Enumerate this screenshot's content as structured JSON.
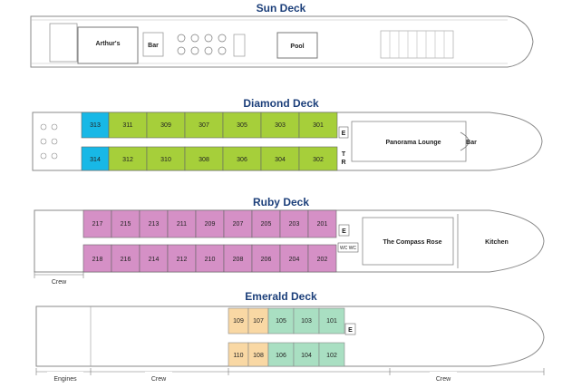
{
  "decks": {
    "sun": {
      "title": "Sun Deck",
      "labels": {
        "arthurs": "Arthur's",
        "bar": "Bar",
        "pool": "Pool"
      }
    },
    "diamond": {
      "title": "Diamond Deck",
      "top_cabins": [
        "313",
        "311",
        "309",
        "307",
        "305",
        "303",
        "301"
      ],
      "bottom_cabins": [
        "314",
        "312",
        "310",
        "308",
        "306",
        "304",
        "302"
      ],
      "labels": {
        "e": "E",
        "t": "T",
        "r": "R",
        "lounge": "Panorama Lounge",
        "bar": "Bar"
      },
      "colors": {
        "blue": "#18b8e6",
        "green": "#a6cf3a"
      }
    },
    "ruby": {
      "title": "Ruby Deck",
      "top_cabins": [
        "217",
        "215",
        "213",
        "211",
        "209",
        "207",
        "205",
        "203",
        "201"
      ],
      "bottom_cabins": [
        "218",
        "216",
        "214",
        "212",
        "210",
        "208",
        "206",
        "204",
        "202"
      ],
      "labels": {
        "e": "E",
        "wc": "WC WC",
        "compass": "The Compass Rose",
        "kitchen": "Kitchen",
        "crew": "Crew"
      },
      "colors": {
        "pink": "#d590c6"
      }
    },
    "emerald": {
      "title": "Emerald Deck",
      "top_cabins": [
        "109",
        "107",
        "105",
        "103",
        "101"
      ],
      "bottom_cabins": [
        "110",
        "108",
        "106",
        "104",
        "102"
      ],
      "labels": {
        "e": "E",
        "engines": "Engines",
        "crew1": "Crew",
        "crew2": "Crew"
      },
      "colors": {
        "peach": "#f9d8a4",
        "mint": "#a9dfc2"
      }
    }
  }
}
